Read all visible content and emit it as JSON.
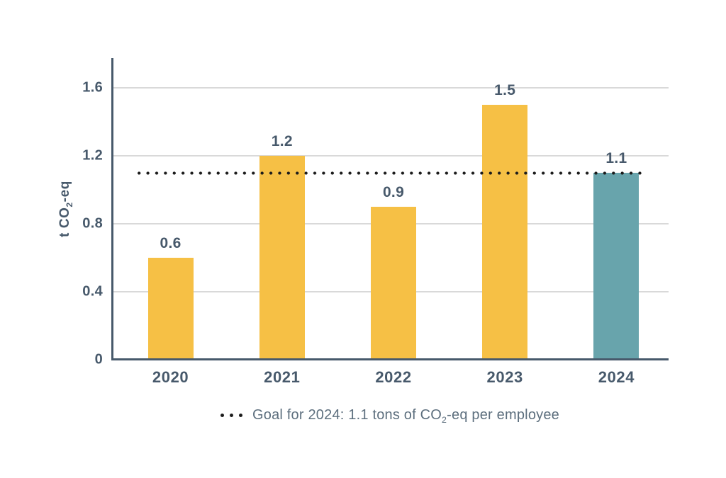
{
  "page": {
    "background": "#ffffff"
  },
  "ylabel": {
    "pre": "t CO",
    "sub": "2",
    "post": "-eq"
  },
  "legend": {
    "pre": "Goal for 2024: 1.1 tons of CO",
    "sub": "2",
    "post": "-eq per employee"
  },
  "chart_data": {
    "type": "bar",
    "categories": [
      "2020",
      "2021",
      "2022",
      "2023",
      "2024"
    ],
    "values": [
      0.6,
      1.2,
      0.9,
      1.5,
      1.1
    ],
    "bar_labels": [
      "0.6",
      "1.2",
      "0.9",
      "1.5",
      "1.1"
    ],
    "bar_colors": [
      "#f6c045",
      "#f6c045",
      "#f6c045",
      "#f6c045",
      "#68a4ac"
    ],
    "title": "",
    "xlabel": "",
    "ylabel": "t CO₂-eq",
    "ylim": [
      0,
      1.775
    ],
    "yticks": [
      0,
      0.4,
      0.8,
      1.2,
      1.6
    ],
    "ytick_labels": [
      "0",
      "0.4",
      "0.8",
      "1.2",
      "1.6"
    ],
    "grid": "horizontal",
    "goal_line": {
      "value": 1.1,
      "style": "dotted",
      "color": "#1c1c1c",
      "label": "Goal for 2024: 1.1 tons of CO₂-eq per employee"
    },
    "legend_position": "bottom-center",
    "colors": {
      "bar_default": "#f6c045",
      "bar_highlight": "#68a4ac",
      "axis": "#47596b",
      "grid": "#d9d9d9",
      "text_dark": "#47596b",
      "legend_text": "#5d6f7e",
      "goal_dots": "#1c1c1c"
    }
  }
}
